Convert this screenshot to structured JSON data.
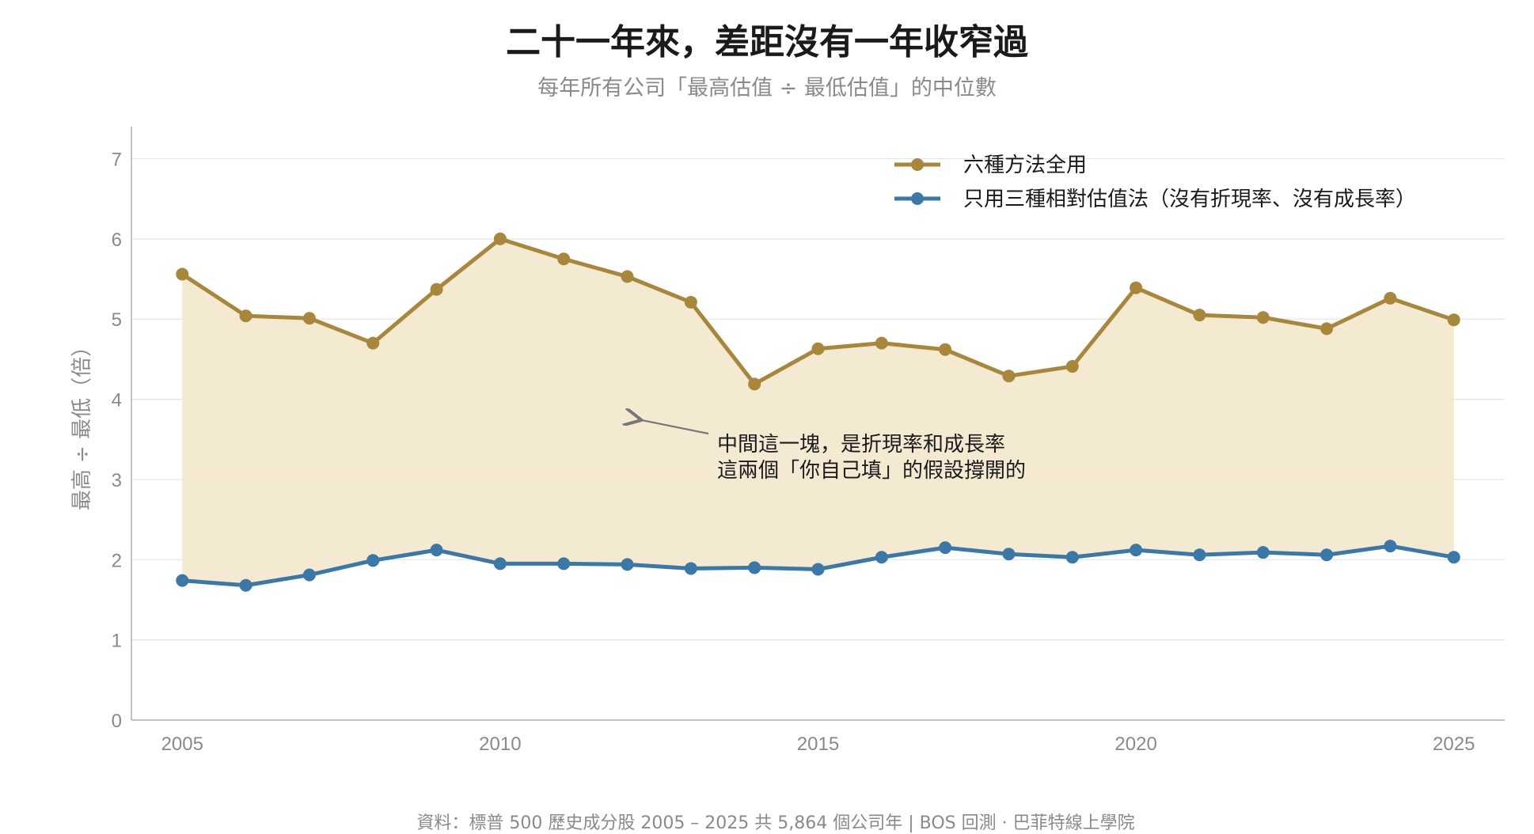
{
  "chart_data": {
    "type": "line",
    "title": "二十一年來，差距沒有一年收窄過",
    "subtitle": "每年所有公司「最高估值 ÷ 最低估值」的中位數",
    "ylabel": "最高 ÷ 最低（倍）",
    "xlabel": "",
    "x": [
      2005,
      2006,
      2007,
      2008,
      2009,
      2010,
      2011,
      2012,
      2013,
      2014,
      2015,
      2016,
      2017,
      2018,
      2019,
      2020,
      2021,
      2022,
      2023,
      2024,
      2025
    ],
    "x_ticks": [
      2005,
      2010,
      2015,
      2020,
      2025
    ],
    "y_ticks": [
      0,
      1,
      2,
      3,
      4,
      5,
      6,
      7
    ],
    "ylim": [
      0,
      7.4
    ],
    "xlim": [
      2004.2,
      2025.8
    ],
    "grid": "horizontal",
    "legend_position": "top-right",
    "series": [
      {
        "name": "六種方法全用",
        "color": "#a8873a",
        "values": [
          5.56,
          5.04,
          5.01,
          4.7,
          5.37,
          6.0,
          5.75,
          5.53,
          5.21,
          4.19,
          4.63,
          4.7,
          4.62,
          4.29,
          4.41,
          5.39,
          5.05,
          5.02,
          4.88,
          5.26,
          4.99
        ]
      },
      {
        "name": "只用三種相對估值法（沒有折現率、沒有成長率）",
        "color": "#3a78a8",
        "values": [
          1.74,
          1.68,
          1.81,
          1.99,
          2.12,
          1.95,
          1.95,
          1.94,
          1.89,
          1.9,
          1.88,
          2.03,
          2.15,
          2.07,
          2.03,
          2.12,
          2.06,
          2.09,
          2.06,
          2.17,
          2.03
        ]
      }
    ],
    "fill_between": {
      "color": "#f3e8cf"
    },
    "annotation": {
      "lines": [
        "中間這一塊，是折現率和成長率",
        "這兩個「你自己填」的假設撐開的"
      ],
      "arrow_target": {
        "x": 2012.1,
        "y": 3.73
      }
    },
    "source": "資料：標普 500 歷史成分股 2005 – 2025 共 5,864 個公司年 | BOS 回測 ·  巴菲特線上學院"
  }
}
